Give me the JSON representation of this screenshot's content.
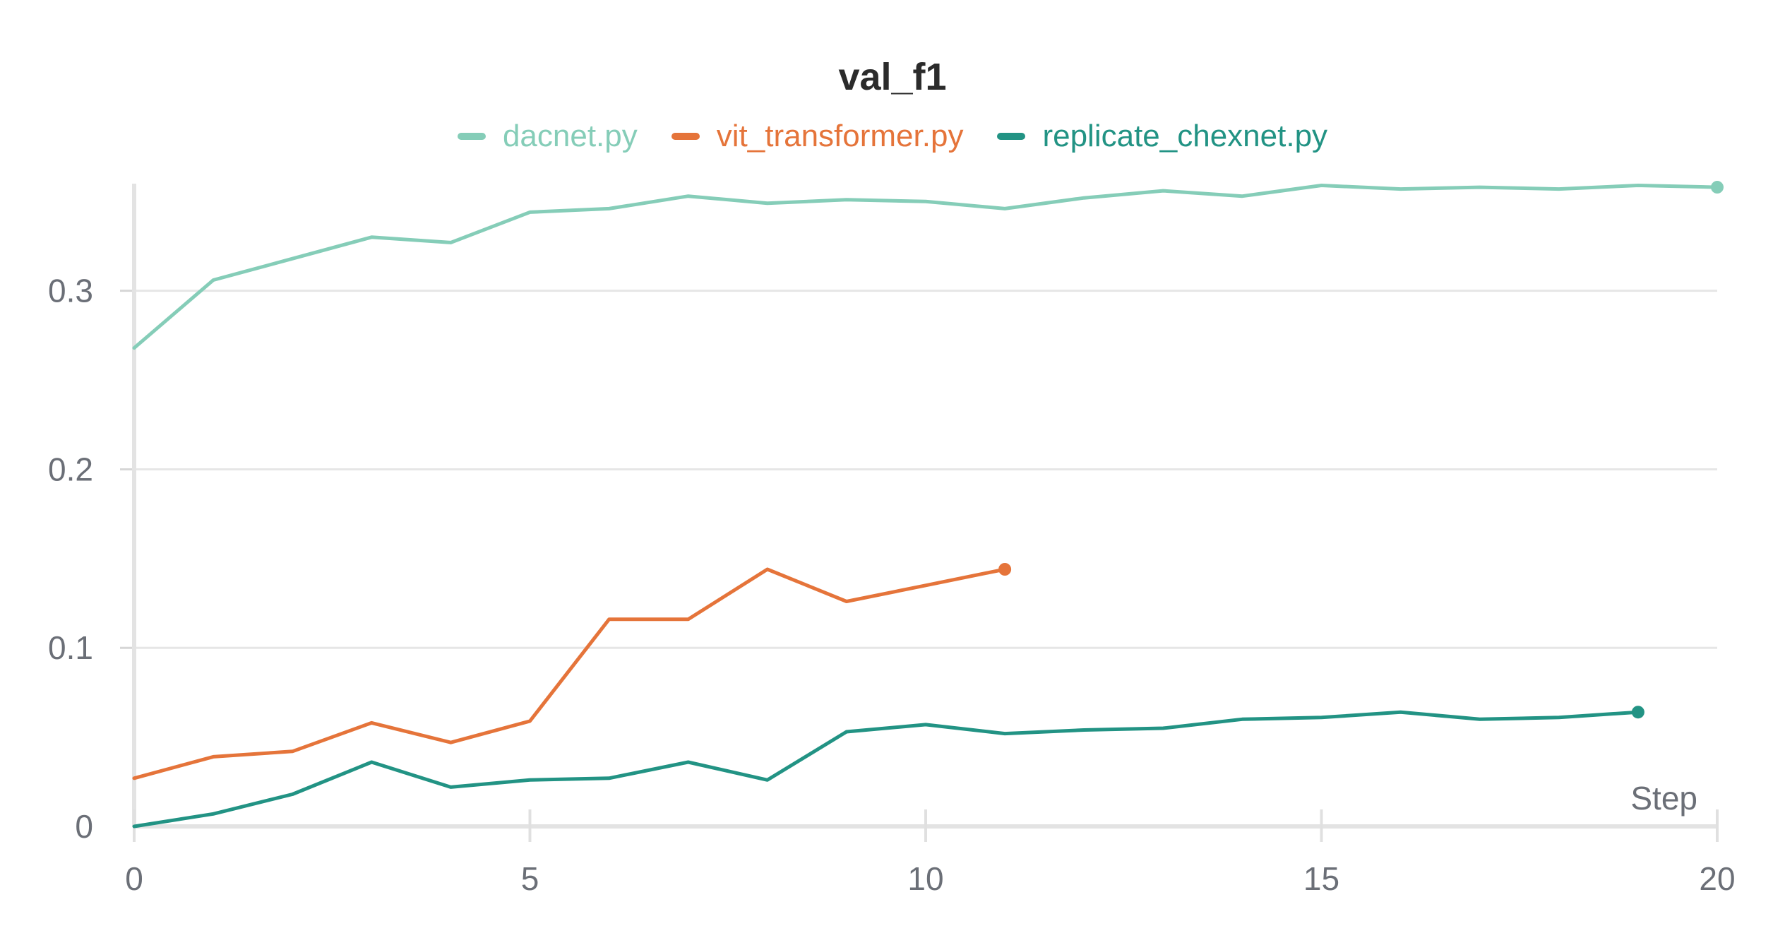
{
  "chart_data": {
    "type": "line",
    "title": "val_f1",
    "xlabel": "Step",
    "ylabel": "",
    "xlim": [
      0,
      20
    ],
    "ylim": [
      0,
      0.36
    ],
    "x_ticks": [
      0,
      5,
      10,
      15,
      20
    ],
    "x_tick_labels": [
      "0",
      "5",
      "10",
      "15",
      "20"
    ],
    "y_ticks": [
      0,
      0.1,
      0.2,
      0.3
    ],
    "y_tick_labels": [
      "0",
      "0.1",
      "0.2",
      "0.3"
    ],
    "grid": true,
    "legend_position": "top-center",
    "series": [
      {
        "name": "dacnet.py",
        "color": "#85cdb8",
        "x": [
          0,
          1,
          2,
          3,
          4,
          5,
          6,
          7,
          8,
          9,
          10,
          11,
          12,
          13,
          14,
          15,
          16,
          17,
          18,
          19,
          20
        ],
        "values": [
          0.268,
          0.306,
          0.318,
          0.33,
          0.327,
          0.344,
          0.346,
          0.353,
          0.349,
          0.351,
          0.35,
          0.346,
          0.352,
          0.356,
          0.353,
          0.359,
          0.357,
          0.358,
          0.357,
          0.359,
          0.358
        ]
      },
      {
        "name": "vit_transformer.py",
        "color": "#e5743a",
        "x": [
          0,
          1,
          2,
          3,
          4,
          5,
          6,
          7,
          8,
          9,
          10,
          11
        ],
        "values": [
          0.027,
          0.039,
          0.042,
          0.058,
          0.047,
          0.059,
          0.116,
          0.116,
          0.144,
          0.126,
          0.135,
          0.144
        ]
      },
      {
        "name": "replicate_chexnet.py",
        "color": "#229384",
        "x": [
          0,
          1,
          2,
          3,
          4,
          5,
          6,
          7,
          8,
          9,
          10,
          11,
          12,
          13,
          14,
          15,
          16,
          17,
          18,
          19
        ],
        "values": [
          0.0,
          0.007,
          0.018,
          0.036,
          0.022,
          0.026,
          0.027,
          0.036,
          0.026,
          0.053,
          0.057,
          0.052,
          0.054,
          0.055,
          0.06,
          0.061,
          0.064,
          0.06,
          0.061,
          0.064
        ]
      }
    ]
  }
}
